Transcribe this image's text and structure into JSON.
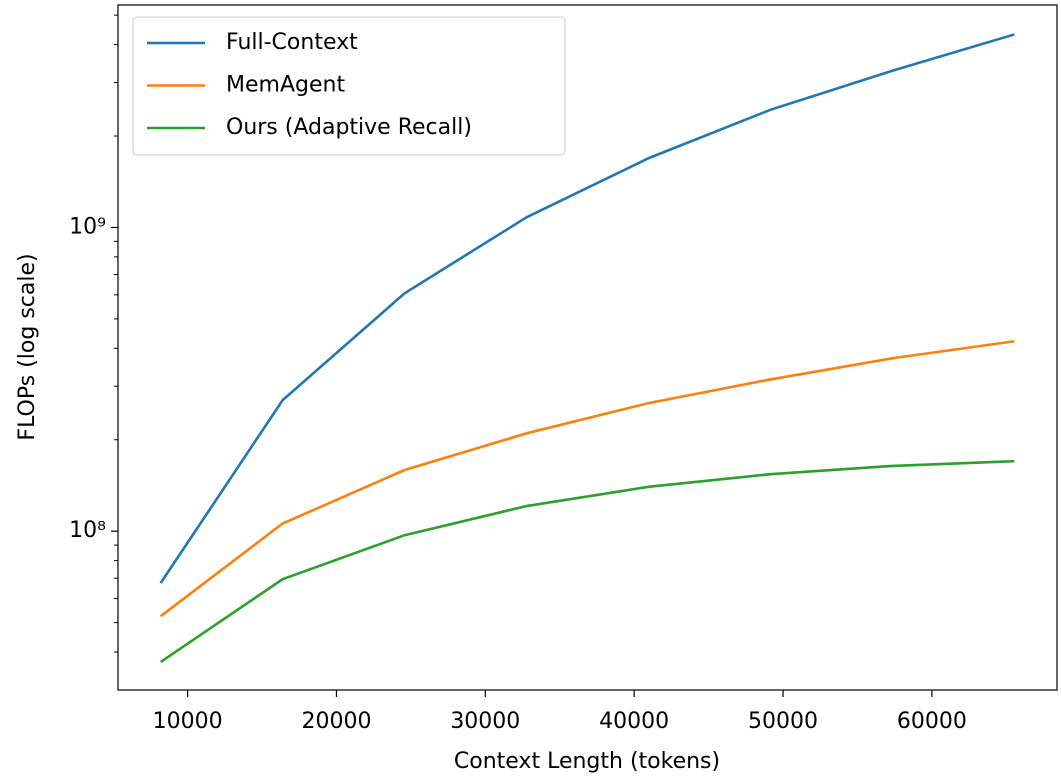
{
  "chart_data": {
    "type": "line",
    "x_label": "Context Length (tokens)",
    "y_label": "FLOPs (log scale)",
    "x": [
      8192,
      16384,
      24576,
      32768,
      40960,
      49152,
      57344,
      65536
    ],
    "series": [
      {
        "name": "Full-Context",
        "color": "#1f77b4",
        "values": [
          67500000,
          270000000,
          607000000,
          1080000000,
          1690000000,
          2440000000,
          3280000000,
          4320000000
        ]
      },
      {
        "name": "MemAgent",
        "color": "#ff7f0e",
        "values": [
          52500000,
          106000000,
          159000000,
          210000000,
          264000000,
          316000000,
          371000000,
          422000000
        ]
      },
      {
        "name": "Ours (Adaptive Recall)",
        "color": "#2ca02c",
        "values": [
          37100000,
          69500000,
          97000000,
          121000000,
          140000000,
          154000000,
          164000000,
          170000000
        ]
      }
    ],
    "xlim": [
      5325,
      68403
    ],
    "xticks": [
      10000,
      20000,
      30000,
      40000,
      50000,
      60000
    ],
    "ylim": [
      30000000,
      5400000000
    ],
    "yscale": "log",
    "yticks": [
      {
        "value": 100000000,
        "label": "10⁸"
      },
      {
        "value": 1000000000,
        "label": "10⁹"
      }
    ],
    "yminorticks": [
      40000000,
      50000000,
      60000000,
      70000000,
      80000000,
      90000000,
      200000000,
      300000000,
      400000000,
      500000000,
      600000000,
      700000000,
      800000000,
      900000000,
      2000000000,
      3000000000,
      4000000000,
      5000000000
    ],
    "legend": "upper left"
  }
}
